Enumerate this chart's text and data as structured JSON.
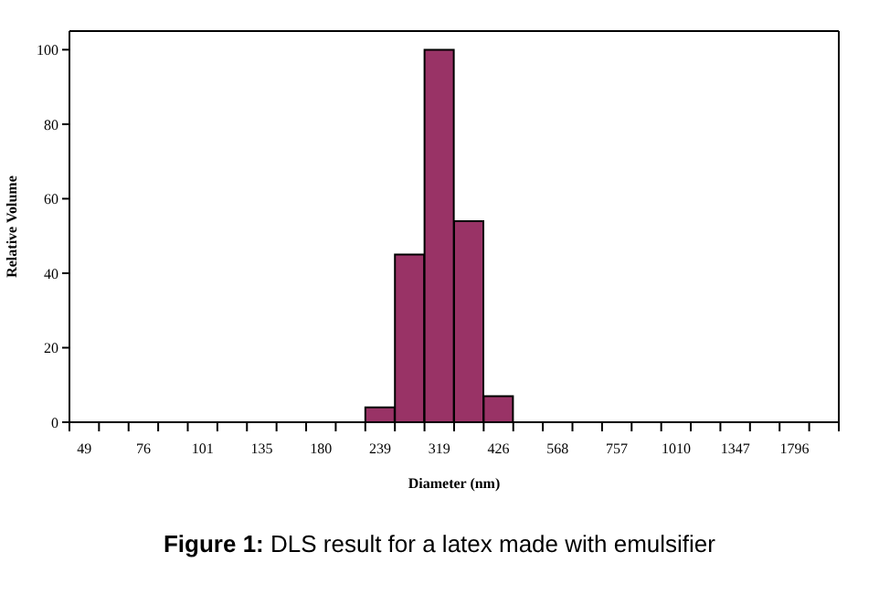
{
  "chart_data": {
    "type": "bar",
    "title": "Figure 1: DLS result for a latex made with emulsifier",
    "xlabel": "Diameter (nm)",
    "ylabel": "Relative Volume",
    "categories": [
      "49",
      null,
      "76",
      null,
      "101",
      null,
      "135",
      null,
      "180",
      null,
      "239",
      null,
      "319",
      null,
      "426",
      null,
      "568",
      null,
      "757",
      null,
      "1010",
      null,
      "1347",
      null,
      "1796",
      null
    ],
    "values": [
      0,
      0,
      0,
      0,
      0,
      0,
      0,
      0,
      0,
      0,
      4,
      45,
      100,
      54,
      7,
      0,
      0,
      0,
      0,
      0,
      0,
      0,
      0,
      0,
      0,
      0
    ],
    "color": "#993366",
    "ylim": [
      0,
      105
    ],
    "yticks": [
      0,
      20,
      40,
      60,
      80,
      100
    ],
    "grid": false
  }
}
